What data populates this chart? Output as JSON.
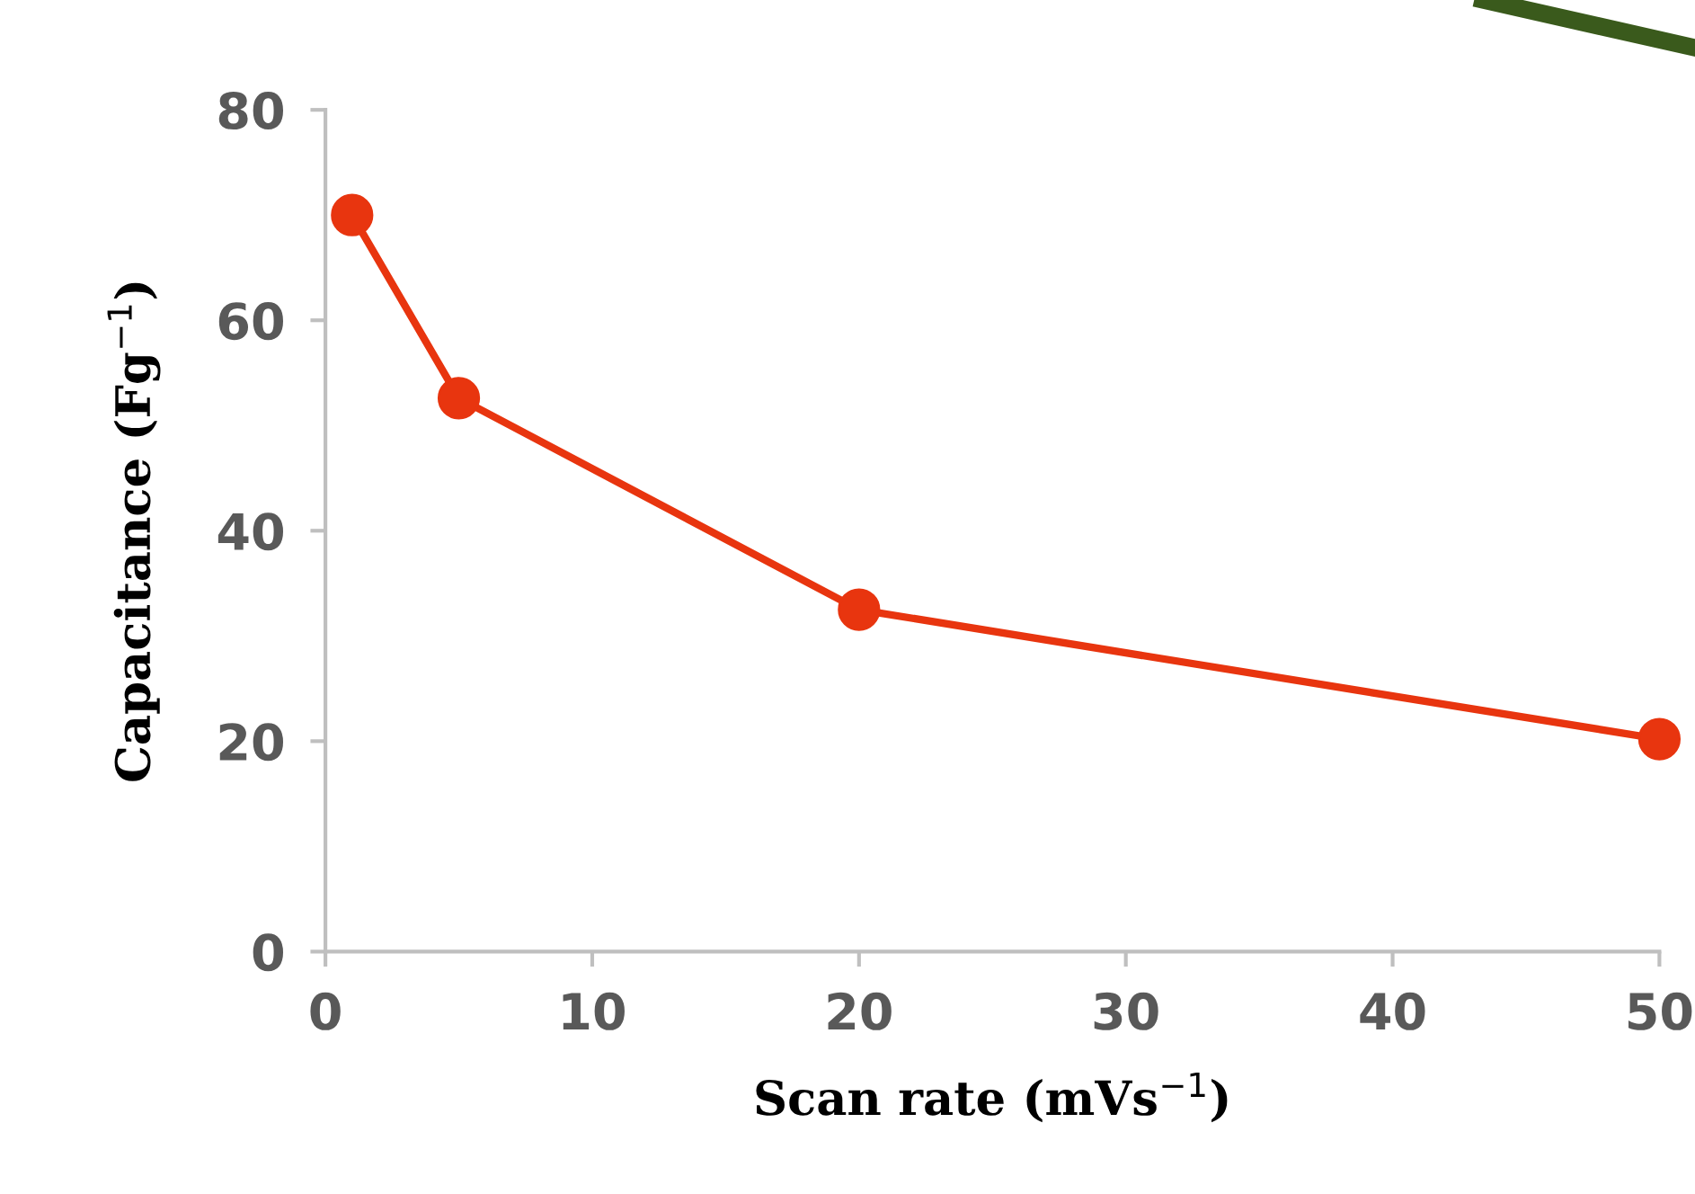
{
  "chart_data": {
    "type": "line",
    "xlabel": "Scan rate (mVs$^{−1}$)",
    "ylabel": "Capacitance (Fg$^{−1}$)",
    "x": [
      1,
      5,
      20,
      50
    ],
    "series": [
      {
        "color": "#e8350f",
        "values": [
          70,
          52.6,
          32.5,
          20.2
        ]
      }
    ],
    "xlim": [
      0,
      50
    ],
    "xticks": [
      0,
      10,
      20,
      30,
      40,
      50
    ],
    "ylim": [
      0,
      80
    ],
    "yticks": [
      0,
      20,
      40,
      60,
      80
    ],
    "marker": "circle",
    "line_style": "solid",
    "grid": false,
    "legend": false
  }
}
